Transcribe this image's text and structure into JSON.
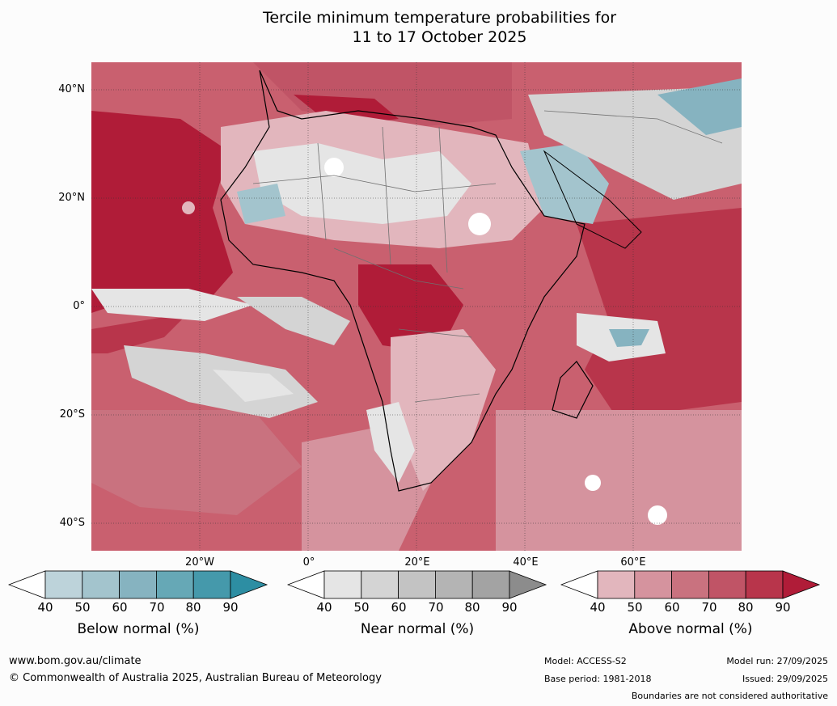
{
  "title": {
    "line1": "Tercile minimum temperature probabilities for",
    "line2": "11 to 17 October 2025"
  },
  "map": {
    "lat_labels": [
      "40°N",
      "20°N",
      "0°",
      "20°S",
      "40°S"
    ],
    "lon_labels": [
      "20°W",
      "0°",
      "20°E",
      "40°E",
      "60°E"
    ]
  },
  "colorbars": [
    {
      "label": "Below normal (%)",
      "ticks": [
        "40",
        "50",
        "60",
        "70",
        "80",
        "90"
      ],
      "colors": [
        "#ffffff",
        "#bdd3da",
        "#a3c4cd",
        "#86b3c0",
        "#66a8b6",
        "#4599ab",
        "#2d8ea3"
      ]
    },
    {
      "label": "Near normal (%)",
      "ticks": [
        "40",
        "50",
        "60",
        "70",
        "80",
        "90"
      ],
      "colors": [
        "#ffffff",
        "#e5e5e5",
        "#d4d4d4",
        "#c3c3c3",
        "#b4b4b4",
        "#a3a3a3",
        "#8c8c8c"
      ]
    },
    {
      "label": "Above normal (%)",
      "ticks": [
        "40",
        "50",
        "60",
        "70",
        "80",
        "90"
      ],
      "colors": [
        "#ffffff",
        "#e2b6bd",
        "#d5939e",
        "#c9727f",
        "#c05466",
        "#b8354b",
        "#b01c38"
      ]
    }
  ],
  "footer": {
    "website": "www.bom.gov.au/climate",
    "copyright": "© Commonwealth of Australia 2025, Australian Bureau of Meteorology",
    "model": "Model: ACCESS-S2",
    "base_period": "Base period: 1981-2018",
    "model_run": "Model run: 27/09/2025",
    "issued": "Issued: 29/09/2025",
    "disclaimer": "Boundaries are not considered authoritative"
  }
}
